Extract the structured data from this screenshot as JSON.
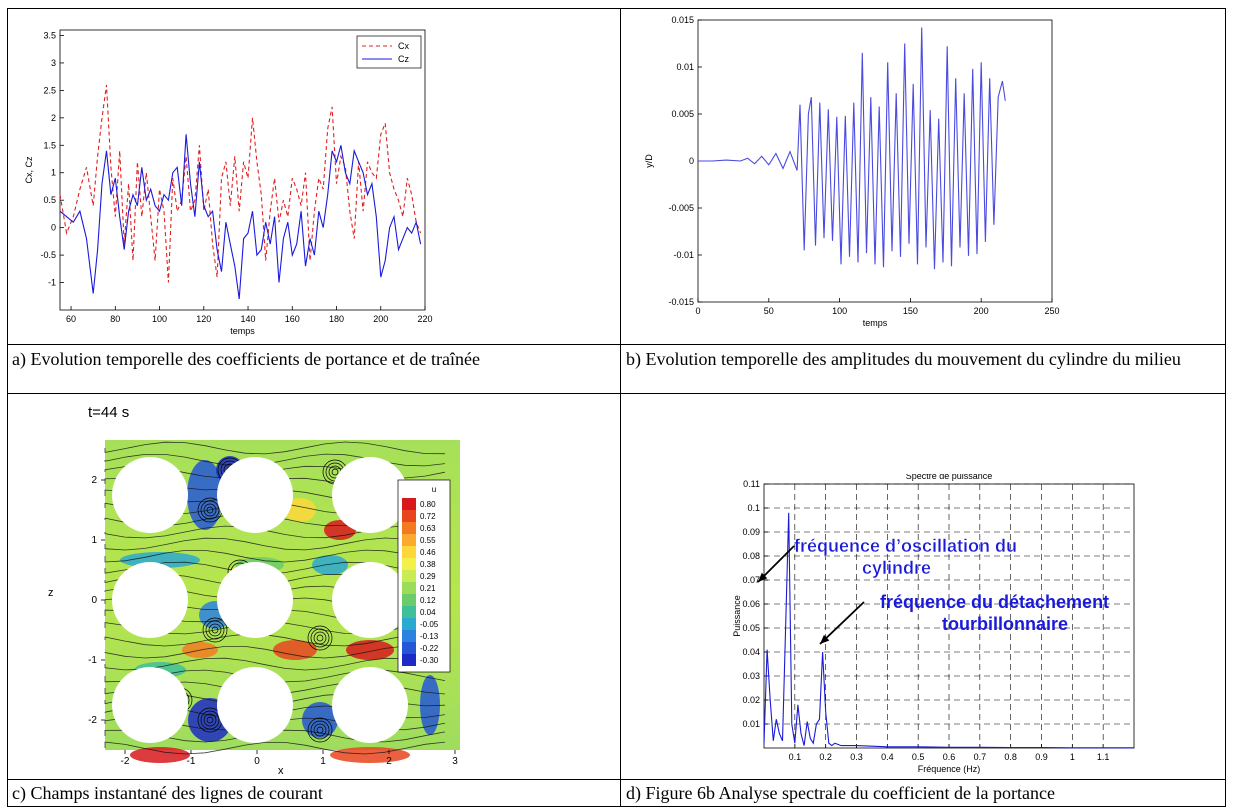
{
  "captions": {
    "a": "a) Evolution temporelle des coefficients de portance et de traînée",
    "b": "b) Evolution temporelle des amplitudes du mouvement du cylindre du milieu",
    "c": "c) Champs instantané des lignes de courant",
    "d": "d)  Figure 6b Analyse spectrale du coefficient de la portance"
  },
  "chart_data": [
    {
      "id": "a",
      "type": "line",
      "title": "",
      "xlabel": "temps",
      "ylabel": "Cx, Cz",
      "xlim": [
        55,
        220
      ],
      "ylim": [
        -1.5,
        3.6
      ],
      "xticks": [
        60,
        80,
        100,
        120,
        140,
        160,
        180,
        200,
        220
      ],
      "yticks": [
        -1,
        -0.5,
        0,
        0.5,
        1,
        1.5,
        2,
        2.5,
        3,
        3.5
      ],
      "legend_position": "top-right",
      "series": [
        {
          "name": "Cx",
          "color": "#e02020",
          "dash": true,
          "x": [
            55,
            58,
            61,
            64,
            67,
            70,
            72,
            74,
            76,
            78,
            80,
            82,
            84,
            86,
            88,
            90,
            92,
            94,
            96,
            98,
            100,
            102,
            104,
            106,
            108,
            110,
            112,
            114,
            116,
            118,
            120,
            122,
            124,
            126,
            128,
            130,
            132,
            134,
            136,
            138,
            140,
            142,
            144,
            146,
            148,
            150,
            152,
            154,
            156,
            158,
            160,
            162,
            164,
            166,
            168,
            170,
            172,
            174,
            176,
            178,
            180,
            182,
            184,
            186,
            188,
            190,
            192,
            194,
            196,
            198,
            200,
            202,
            204,
            206,
            208,
            210,
            212,
            214,
            216,
            218
          ],
          "y": [
            0.6,
            -0.1,
            0.2,
            0.7,
            1.1,
            0.4,
            1.3,
            2.0,
            2.6,
            1.1,
            0.2,
            1.4,
            -0.3,
            0.8,
            -0.6,
            1.2,
            0.2,
            1.0,
            0.2,
            -0.6,
            0.7,
            0.3,
            -1.0,
            0.9,
            0.3,
            0.5,
            1.3,
            0.3,
            0.5,
            1.5,
            0.3,
            0.7,
            -0.3,
            -0.9,
            0.9,
            1.2,
            0.4,
            1.3,
            0.3,
            1.2,
            0.9,
            2.0,
            1.2,
            0.6,
            -0.6,
            0.3,
            0.9,
            0.1,
            0.5,
            0.2,
            0.9,
            0.7,
            0.4,
            1.0,
            -0.6,
            0.3,
            0.9,
            0.7,
            1.8,
            2.2,
            0.8,
            1.3,
            1.1,
            0.3,
            -0.2,
            1.2,
            0.3,
            1.2,
            1.0,
            0.9,
            1.7,
            1.9,
            1.0,
            0.7,
            0.5,
            0.2,
            0.9,
            0.6,
            0.1,
            -0.1
          ]
        },
        {
          "name": "Cz",
          "color": "#1a1adc",
          "dash": false,
          "x": [
            55,
            58,
            61,
            64,
            67,
            70,
            72,
            74,
            76,
            78,
            80,
            82,
            84,
            86,
            88,
            90,
            92,
            94,
            96,
            98,
            100,
            102,
            104,
            106,
            108,
            110,
            112,
            114,
            116,
            118,
            120,
            122,
            124,
            126,
            128,
            130,
            132,
            134,
            136,
            138,
            140,
            142,
            144,
            146,
            148,
            150,
            152,
            154,
            156,
            158,
            160,
            162,
            164,
            166,
            168,
            170,
            172,
            174,
            176,
            178,
            180,
            182,
            184,
            186,
            188,
            190,
            192,
            194,
            196,
            198,
            200,
            202,
            204,
            206,
            208,
            210,
            212,
            214,
            216,
            218
          ],
          "y": [
            0.3,
            0.2,
            0.1,
            0.3,
            -0.2,
            -1.2,
            -0.4,
            0.8,
            1.4,
            0.6,
            0.9,
            0.2,
            -0.4,
            0.3,
            0.6,
            0.4,
            1.1,
            0.5,
            0.7,
            0.4,
            0.3,
            0.6,
            0.5,
            1.0,
            1.1,
            0.4,
            1.7,
            0.8,
            0.2,
            1.2,
            0.4,
            0.2,
            0.3,
            -0.4,
            -0.8,
            0.1,
            -0.3,
            -0.7,
            -1.3,
            -0.2,
            -0.1,
            0.3,
            -0.5,
            -0.4,
            0.1,
            -0.3,
            0.2,
            -1.0,
            -0.2,
            0.1,
            -0.5,
            -0.3,
            0.3,
            -0.7,
            -0.2,
            -0.5,
            0.3,
            0.0,
            0.6,
            1.4,
            1.2,
            1.5,
            1.0,
            0.8,
            1.4,
            1.2,
            1.0,
            0.6,
            0.8,
            0.2,
            -0.9,
            -0.6,
            0.0,
            0.2,
            -0.4,
            -0.2,
            0.0,
            -0.1,
            0.1,
            -0.3
          ]
        }
      ]
    },
    {
      "id": "b",
      "type": "line",
      "title": "",
      "xlabel": "temps",
      "ylabel": "y/D",
      "xlim": [
        0,
        250
      ],
      "ylim": [
        -0.015,
        0.015
      ],
      "xticks": [
        0,
        50,
        100,
        150,
        200,
        250
      ],
      "yticks": [
        -0.015,
        -0.01,
        -0.005,
        0,
        0.005,
        0.01,
        0.015
      ],
      "series": [
        {
          "name": "",
          "color": "#4a4ae0",
          "x": [
            0,
            10,
            20,
            30,
            35,
            40,
            45,
            50,
            55,
            60,
            65,
            70,
            72,
            75,
            78,
            80,
            83,
            86,
            89,
            92,
            95,
            98,
            101,
            104,
            107,
            110,
            113,
            116,
            119,
            122,
            125,
            128,
            131,
            134,
            137,
            140,
            143,
            146,
            149,
            152,
            155,
            158,
            161,
            164,
            167,
            170,
            173,
            176,
            179,
            182,
            185,
            188,
            191,
            194,
            197,
            200,
            203,
            206,
            209,
            212,
            215,
            217
          ],
          "y": [
            0,
            0,
            0.0001,
            0,
            0.0003,
            -0.0003,
            0.0005,
            -0.0004,
            0.0008,
            -0.0008,
            0.001,
            -0.001,
            0.006,
            -0.0095,
            0.005,
            0.0068,
            -0.009,
            0.0062,
            -0.0082,
            0.0055,
            -0.0085,
            0.0047,
            -0.011,
            0.0048,
            -0.0102,
            0.0062,
            -0.0108,
            0.0115,
            -0.0098,
            0.0068,
            -0.011,
            0.0058,
            -0.0113,
            0.0105,
            -0.0096,
            0.0072,
            -0.0102,
            0.0125,
            -0.0088,
            0.0082,
            -0.011,
            0.0142,
            -0.0092,
            0.0054,
            -0.0115,
            0.0045,
            -0.0108,
            0.0122,
            -0.0112,
            0.0088,
            -0.0092,
            0.0072,
            -0.0101,
            0.0098,
            -0.0099,
            0.0105,
            -0.0086,
            0.0088,
            -0.0068,
            0.0068,
            0.0085,
            0.0064
          ]
        }
      ]
    },
    {
      "id": "d",
      "type": "line",
      "title": "Spectre de puissance",
      "xlabel": "Fréquence (Hz)",
      "ylabel": "Puissance",
      "xlim": [
        0,
        1.2
      ],
      "ylim": [
        0,
        0.11
      ],
      "xticks": [
        0.1,
        0.2,
        0.3,
        0.4,
        0.5,
        0.6,
        0.7,
        0.8,
        0.9,
        1,
        1.1
      ],
      "yticks": [
        0.01,
        0.02,
        0.03,
        0.04,
        0.05,
        0.06,
        0.07,
        0.08,
        0.09,
        0.1,
        0.11
      ],
      "grid": true,
      "annotations": [
        "fréquence d’oscillation du cylindre",
        "fréquence du détachement tourbillonnaire"
      ],
      "series": [
        {
          "name": "",
          "color": "#1a1ad8",
          "x": [
            0.0,
            0.01,
            0.02,
            0.03,
            0.04,
            0.05,
            0.06,
            0.07,
            0.08,
            0.09,
            0.1,
            0.11,
            0.12,
            0.13,
            0.14,
            0.15,
            0.16,
            0.17,
            0.18,
            0.19,
            0.2,
            0.21,
            0.22,
            0.23,
            0.25,
            0.3,
            0.4,
            0.5,
            0.6,
            0.7,
            0.8,
            0.9,
            1.0,
            1.1,
            1.2
          ],
          "y": [
            0.002,
            0.041,
            0.02,
            0.003,
            0.012,
            0.006,
            0.003,
            0.05,
            0.098,
            0.01,
            0.002,
            0.018,
            0.006,
            0.001,
            0.011,
            0.004,
            0.002,
            0.01,
            0.012,
            0.04,
            0.015,
            0.002,
            0.001,
            0.002,
            0.001,
            0.001,
            0.0005,
            0.0005,
            0.0003,
            0.0003,
            0.0002,
            0.0002,
            0.0001,
            0.0001,
            0.0001
          ]
        }
      ]
    }
  ],
  "panel_c": {
    "time_label": "t=44 s",
    "axis_x_label": "x",
    "axis_z_label": "z",
    "x_ticks": [
      "-2",
      "-1",
      "0",
      "1",
      "2",
      "3"
    ],
    "z_ticks": [
      "2",
      "1",
      "0",
      "-1",
      "-2"
    ],
    "legend_title": "u",
    "legend_values": [
      "0.80",
      "0.72",
      "0.63",
      "0.55",
      "0.46",
      "0.38",
      "0.29",
      "0.21",
      "0.12",
      "0.04",
      "-0.05",
      "-0.13",
      "-0.22",
      "-0.30"
    ],
    "legend_colors": [
      "#d7191c",
      "#e8451f",
      "#f47a22",
      "#fba92f",
      "#fdd83a",
      "#f4f04a",
      "#c9ec52",
      "#9bdc5a",
      "#6ccb6a",
      "#3fbf9a",
      "#2aa9d1",
      "#2b82e0",
      "#2457d6",
      "#1c2bc4"
    ]
  }
}
